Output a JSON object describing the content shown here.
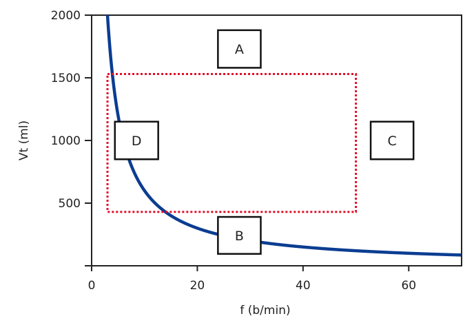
{
  "chart_data": {
    "type": "line",
    "title": "",
    "xlabel": "f (b/min)",
    "ylabel": "Vt (ml)",
    "xlim": [
      0,
      70
    ],
    "ylim": [
      0,
      2000
    ],
    "xticks": [
      0,
      20,
      40,
      60
    ],
    "yticks": [
      500,
      1000,
      1500,
      2000
    ],
    "grid": false,
    "series": [
      {
        "curve": "Vt = 6000 / f",
        "constant": 6000,
        "f_range": [
          3,
          70
        ],
        "color": "#0b3d91"
      }
    ],
    "region": {
      "style": "dotted",
      "color": "#e0102a",
      "f": [
        3,
        50
      ],
      "Vt": [
        430,
        1530
      ]
    },
    "labels": [
      {
        "text": "A",
        "f": [
          23.9,
          32.0
        ],
        "Vt": [
          1580,
          1880
        ]
      },
      {
        "text": "B",
        "f": [
          23.9,
          32.0
        ],
        "Vt": [
          95,
          390
        ]
      },
      {
        "text": "C",
        "f": [
          52.8,
          60.9
        ],
        "Vt": [
          850,
          1150
        ]
      },
      {
        "text": "D",
        "f": [
          4.4,
          12.6
        ],
        "Vt": [
          850,
          1150
        ]
      }
    ]
  }
}
